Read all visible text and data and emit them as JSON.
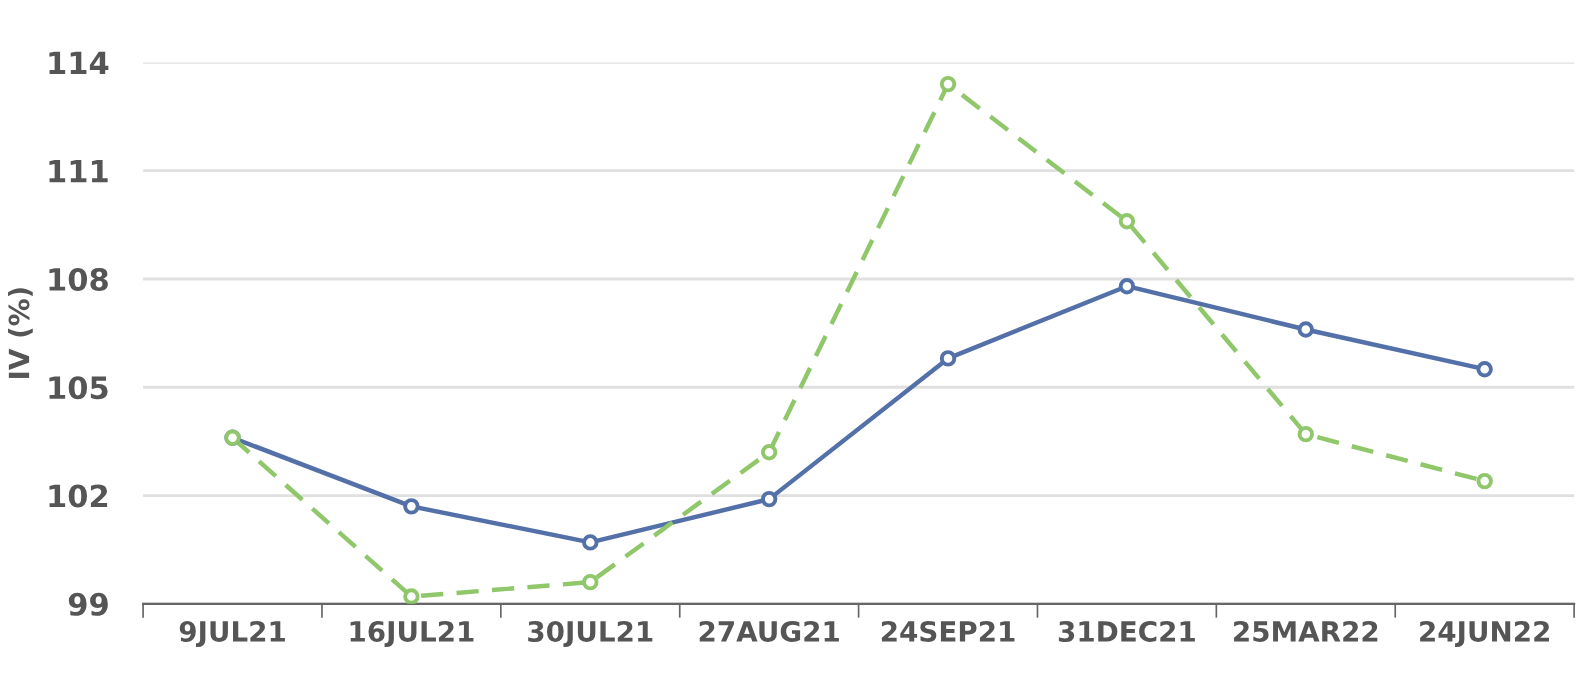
{
  "chart_data": {
    "type": "line",
    "ylabel": "IV (%)",
    "categories": [
      "9JUL21",
      "16JUL21",
      "30JUL21",
      "27AUG21",
      "24SEP21",
      "31DEC21",
      "25MAR22",
      "24JUN22"
    ],
    "series": [
      {
        "color": "#5470a8",
        "values": [
          103.6,
          101.7,
          100.7,
          101.9,
          105.8,
          107.8,
          106.6,
          105.5
        ],
        "line_style": "solid"
      },
      {
        "color": "#8fc76a",
        "values": [
          103.6,
          99.2,
          99.6,
          103.2,
          113.4,
          109.6,
          103.7,
          102.4
        ],
        "line_style": "dashed"
      }
    ],
    "ylim": [
      99,
      114
    ],
    "yticks": [
      99,
      102,
      105,
      108,
      111,
      114
    ],
    "grid": "y",
    "marker": "circle"
  }
}
